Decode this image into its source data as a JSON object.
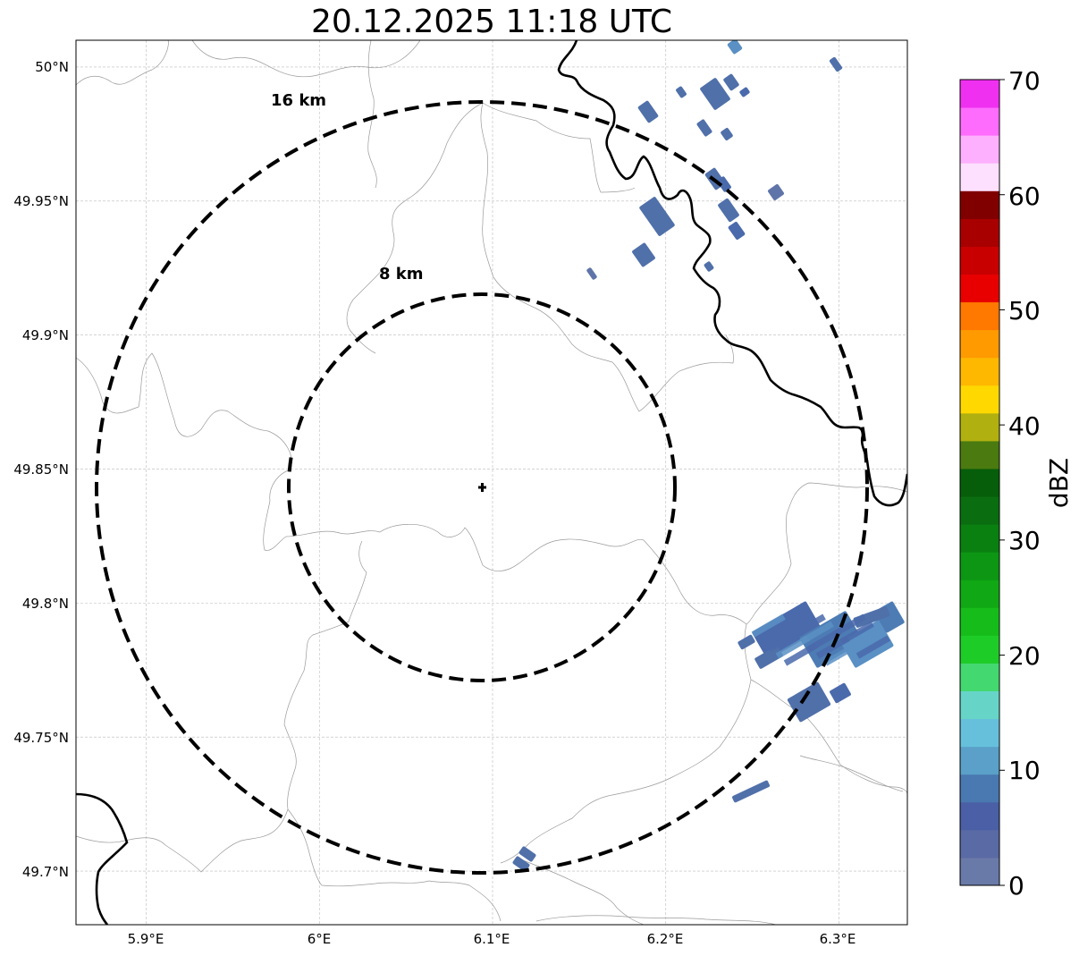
{
  "title": "20.12.2025 11:18 UTC",
  "map": {
    "lon_range": [
      5.86,
      6.34
    ],
    "lat_range": [
      49.68,
      50.01
    ],
    "gridlines": true,
    "lon_ticks": [
      {
        "value": 5.9,
        "label": "5.9°E"
      },
      {
        "value": 6.0,
        "label": "6°E"
      },
      {
        "value": 6.1,
        "label": "6.1°E"
      },
      {
        "value": 6.2,
        "label": "6.2°E"
      },
      {
        "value": 6.3,
        "label": "6.3°E"
      }
    ],
    "lat_ticks": [
      {
        "value": 50.0,
        "label": "50°N"
      },
      {
        "value": 49.95,
        "label": "49.95°N"
      },
      {
        "value": 49.9,
        "label": "49.9°N"
      },
      {
        "value": 49.85,
        "label": "49.85°N"
      },
      {
        "value": 49.8,
        "label": "49.8°N"
      },
      {
        "value": 49.75,
        "label": "49.75°N"
      },
      {
        "value": 49.7,
        "label": "49.7°N"
      }
    ],
    "center": {
      "lon": 6.095,
      "lat": 49.843
    },
    "range_rings": [
      {
        "radius_km": 8,
        "label": "8 km"
      },
      {
        "radius_km": 16,
        "label": "16 km"
      }
    ]
  },
  "colorbar": {
    "label": "dBZ",
    "min": 0,
    "max": 70,
    "step": 2.5,
    "tick_labels": [
      "0",
      "10",
      "20",
      "30",
      "40",
      "50",
      "60",
      "70"
    ],
    "colors": [
      "#6a7aa8",
      "#5a6aa4",
      "#4a5fa5",
      "#4a78b0",
      "#5aa0c8",
      "#66c0dc",
      "#66d5c8",
      "#44d870",
      "#1ecc28",
      "#16bc1a",
      "#10a814",
      "#0c9614",
      "#0a8010",
      "#0a6e10",
      "#065e0a",
      "#4a7a10",
      "#b0b010",
      "#ffd800",
      "#ffb800",
      "#ff9a00",
      "#ff7800",
      "#e80000",
      "#c80000",
      "#a80000",
      "#800000",
      "#fde0fe",
      "#fdb0fd",
      "#fd6cfd",
      "#f030f0"
    ]
  },
  "legend_colors": {
    "border": "#000000",
    "rings": "#000000",
    "grid": "#bbbbbb"
  }
}
